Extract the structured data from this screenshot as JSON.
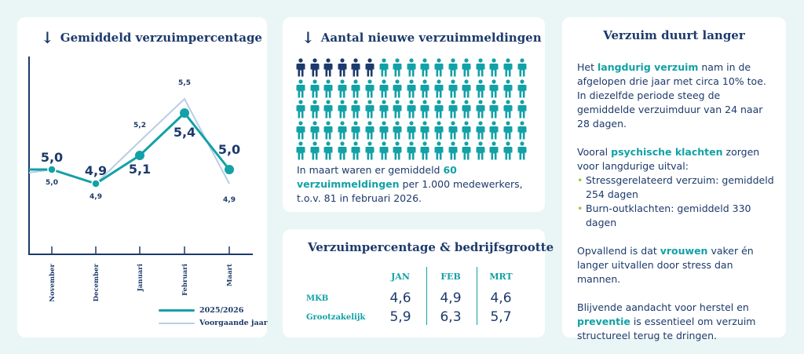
{
  "card1": {
    "title": "Gemiddeld verzuimpercentage",
    "icon": "arrow-down-icon",
    "legend": {
      "current": "2025/2026",
      "previous": "Voorgaande jaar"
    }
  },
  "chart_data": {
    "type": "line",
    "title": "Gemiddeld verzuimpercentage",
    "categories": [
      "November",
      "December",
      "Januari",
      "Februari",
      "Maart"
    ],
    "series": [
      {
        "name": "2025/2026",
        "values": [
          5.0,
          4.9,
          5.1,
          5.4,
          5.0
        ],
        "labels": [
          "5,0",
          "4,9",
          "5,1",
          "5,4",
          "5,0"
        ],
        "color": "#12a1a6"
      },
      {
        "name": "Voorgaande jaar",
        "values": [
          5.0,
          4.9,
          5.2,
          5.5,
          4.9
        ],
        "labels": [
          "5,0",
          "4,9",
          "5,2",
          "5,5",
          "4,9"
        ],
        "color": "#b9cde6"
      }
    ],
    "ylim": [
      4.4,
      5.8
    ],
    "grid": false,
    "legend_position": "bottom-right"
  },
  "card2": {
    "title": "Aantal nieuwe verzuimmeldingen",
    "icon": "arrow-down-icon",
    "people_dark_count": 6,
    "people_rows": 5,
    "people_cols": 17,
    "text_pre": "In maart waren er gemiddeld ",
    "text_hl": "60 verzuimmeldingen",
    "text_post": " per 1.000 medewerkers, t.o.v. 81 in februari 2026.",
    "colors": {
      "dark": "#1c3a6b",
      "teal": "#12a1a6"
    }
  },
  "card3": {
    "title": "Verzuimpercentage & bedrijfsgrootte",
    "columns": [
      "JAN",
      "FEB",
      "MRT"
    ],
    "rows": [
      {
        "label": "MKB",
        "values": [
          "4,6",
          "4,9",
          "4,6"
        ]
      },
      {
        "label": "Grootzakelijk",
        "values": [
          "5,9",
          "6,3",
          "5,7"
        ]
      }
    ]
  },
  "card4": {
    "title": "Verzuim duurt langer",
    "p1_pre": "Het ",
    "p1_hl": "langdurig verzuim",
    "p1_post": " nam in de afgelopen drie jaar met circa 10% toe. In diezelfde periode steeg de gemiddelde verzuimduur van 24 naar 28 dagen.",
    "p2_pre": "Vooral ",
    "p2_hl": "psychische klachten",
    "p2_post": " zorgen voor langdurige uitval:",
    "bullets": [
      "Stressgerelateerd verzuim: gemiddeld 254 dagen",
      "Burn-outklachten: gemiddeld 330 dagen"
    ],
    "p3_pre": "Opvallend is dat ",
    "p3_hl": "vrouwen",
    "p3_post": " vaker én langer uitvallen door stress dan mannen.",
    "p4_pre": "Blijvende aandacht voor herstel en ",
    "p4_hl": "preventie",
    "p4_post": " is essentieel om verzuim structureel terug te dringen."
  }
}
